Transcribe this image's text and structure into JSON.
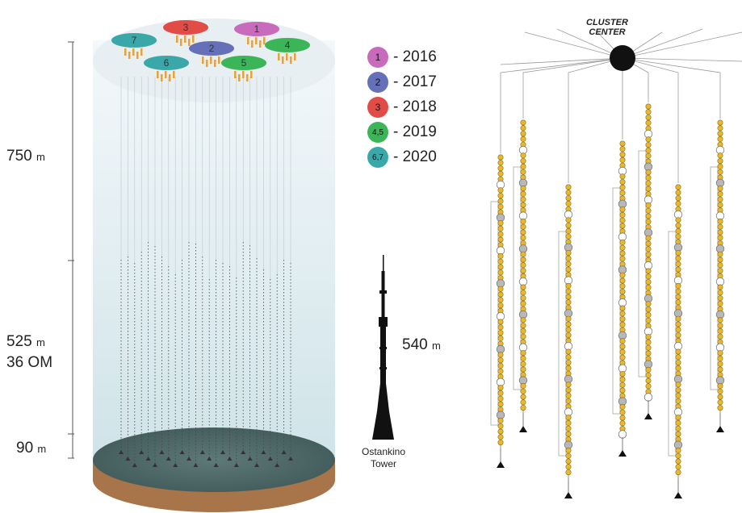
{
  "depth_labels": {
    "top_value": "750",
    "top_unit": "m",
    "mid_value": "525",
    "mid_unit": "m",
    "mid_om": "36 OM",
    "bottom_value": "90",
    "bottom_unit": "m"
  },
  "legend": [
    {
      "badge": "1",
      "year": "- 2016",
      "color": "#c86bbd"
    },
    {
      "badge": "2",
      "year": "- 2017",
      "color": "#6670b8"
    },
    {
      "badge": "3",
      "year": "- 2018",
      "color": "#e24c47"
    },
    {
      "badge": "4,5",
      "year": "- 2019",
      "color": "#3cb558"
    },
    {
      "badge": "6,7",
      "year": "- 2020",
      "color": "#3aa7a8"
    }
  ],
  "top_clusters": [
    {
      "number": "7",
      "color": "#3aa7a8"
    },
    {
      "number": "3",
      "color": "#e24c47"
    },
    {
      "number": "1",
      "color": "#c86bbd"
    },
    {
      "number": "2",
      "color": "#6670b8"
    },
    {
      "number": "4",
      "color": "#3cb558"
    },
    {
      "number": "6",
      "color": "#3aa7a8"
    },
    {
      "number": "5",
      "color": "#3cb558"
    }
  ],
  "tower": {
    "height_value": "540",
    "height_unit": "m",
    "name_line1": "Ostankino",
    "name_line2": "Tower"
  },
  "cluster_center": {
    "line1": "CLUSTER",
    "line2": "CENTER"
  },
  "colors": {
    "om": "#e8b830",
    "seabed": "#4e6b6a",
    "rim": "#a8744a",
    "water": "#d7e9ef"
  }
}
